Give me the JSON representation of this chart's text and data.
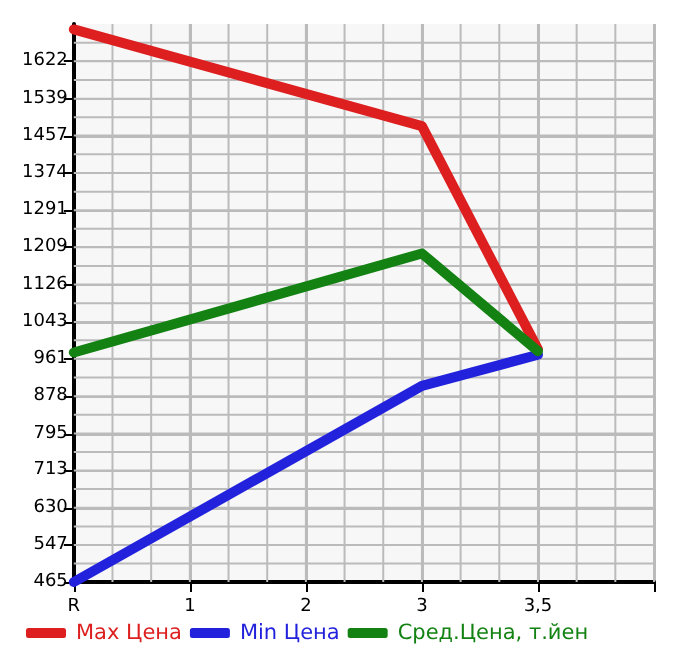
{
  "chart_data": {
    "type": "line",
    "categories": [
      "R",
      "1",
      "2",
      "3",
      "3,5",
      null
    ],
    "ylim": [
      465,
      1705
    ],
    "yticks": [
      465,
      547,
      630,
      713,
      795,
      878,
      961,
      1043,
      1126,
      1209,
      1291,
      1374,
      1457,
      1539,
      1622
    ],
    "grid": true,
    "legend": "bottom",
    "marker": "none",
    "line_style": "solid",
    "series": [
      {
        "name": "Max Цена",
        "color": "#dd1f1f",
        "values": [
          1693,
          null,
          null,
          1478,
          982,
          null
        ]
      },
      {
        "name": "Min Цена",
        "color": "#2222dd",
        "values": [
          465,
          null,
          null,
          901,
          970,
          null
        ]
      },
      {
        "name": "Сред.Цена, т.йен",
        "color": "#138213",
        "values": [
          975,
          null,
          null,
          1195,
          978,
          null
        ]
      }
    ]
  }
}
